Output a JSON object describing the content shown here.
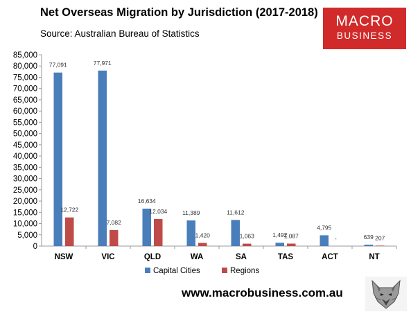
{
  "header": {
    "title": "Net Overseas Migration by Jurisdiction (2017-2018)",
    "subtitle": "Source: Australian Bureau of Statistics"
  },
  "logo": {
    "line1": "MACRO",
    "line2": "BUSINESS",
    "color": "#d12a2a"
  },
  "footer": {
    "url": "www.macrobusiness.com.au"
  },
  "colors": {
    "capital": "#4a7ebb",
    "regions": "#be4b48"
  },
  "chart_data": {
    "type": "bar",
    "categories": [
      "NSW",
      "VIC",
      "QLD",
      "WA",
      "SA",
      "TAS",
      "ACT",
      "NT"
    ],
    "series": [
      {
        "name": "Capital Cities",
        "values": [
          77091,
          77971,
          16634,
          11389,
          11612,
          1492,
          4795,
          639
        ],
        "labels": [
          "77,091",
          "77,971",
          "16,634",
          "11,389",
          "11,612",
          "1,492",
          "4,795",
          "639"
        ]
      },
      {
        "name": "Regions",
        "values": [
          12722,
          7082,
          12034,
          1420,
          1063,
          1087,
          0,
          207
        ],
        "labels": [
          "12,722",
          "7,082",
          "12,034",
          "1,420",
          "1,063",
          "1,087",
          "-",
          "207"
        ]
      }
    ],
    "ylim": [
      0,
      85000
    ],
    "yticks": [
      0,
      5000,
      10000,
      15000,
      20000,
      25000,
      30000,
      35000,
      40000,
      45000,
      50000,
      55000,
      60000,
      65000,
      70000,
      75000,
      80000,
      85000
    ],
    "ytick_labels": [
      "0",
      "5,000",
      "10,000",
      "15,000",
      "20,000",
      "25,000",
      "30,000",
      "35,000",
      "40,000",
      "45,000",
      "50,000",
      "55,000",
      "60,000",
      "65,000",
      "70,000",
      "75,000",
      "80,000",
      "85,000"
    ],
    "grid": false,
    "legend": "bottom"
  }
}
